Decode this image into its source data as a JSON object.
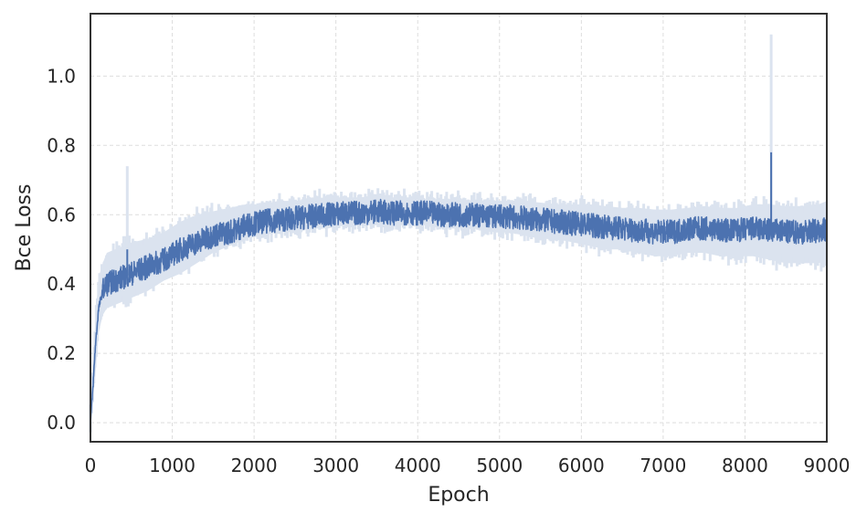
{
  "chart_data": {
    "type": "line",
    "title": "",
    "xlabel": "Epoch",
    "ylabel": "Bce Loss",
    "xlim": [
      0,
      9000
    ],
    "ylim": [
      -0.055,
      1.18
    ],
    "xticks": [
      0,
      1000,
      2000,
      3000,
      4000,
      5000,
      6000,
      7000,
      8000,
      9000
    ],
    "xtick_labels": [
      "0",
      "1000",
      "2000",
      "3000",
      "4000",
      "5000",
      "6000",
      "7000",
      "8000",
      "9000"
    ],
    "yticks": [
      0.0,
      0.2,
      0.4,
      0.6,
      0.8,
      1.0
    ],
    "ytick_labels": [
      "0.0",
      "0.2",
      "0.4",
      "0.6",
      "0.8",
      "1.0"
    ],
    "grid": true,
    "legend": "none",
    "series": [
      {
        "color": "#4c72b0",
        "band_color": "#dbe3ef",
        "x": [
          0,
          30,
          60,
          100,
          150,
          200,
          300,
          400,
          500,
          700,
          900,
          1100,
          1300,
          1500,
          1700,
          1900,
          2100,
          2300,
          2500,
          2700,
          2900,
          3100,
          3300,
          3500,
          3700,
          3900,
          4100,
          4300,
          4500,
          4700,
          4900,
          5100,
          5300,
          5500,
          5700,
          5900,
          6100,
          6300,
          6500,
          6700,
          6900,
          7100,
          7300,
          7500,
          7700,
          7900,
          8100,
          8300,
          8500,
          8700,
          8900,
          9000
        ],
        "mean": [
          0.0,
          0.1,
          0.22,
          0.33,
          0.38,
          0.4,
          0.41,
          0.42,
          0.43,
          0.45,
          0.47,
          0.5,
          0.52,
          0.54,
          0.55,
          0.57,
          0.58,
          0.585,
          0.59,
          0.595,
          0.6,
          0.605,
          0.605,
          0.61,
          0.605,
          0.605,
          0.605,
          0.6,
          0.6,
          0.6,
          0.595,
          0.595,
          0.59,
          0.585,
          0.58,
          0.575,
          0.57,
          0.565,
          0.56,
          0.555,
          0.55,
          0.55,
          0.56,
          0.56,
          0.555,
          0.555,
          0.56,
          0.555,
          0.55,
          0.55,
          0.555,
          0.56
        ],
        "lower": [
          0.0,
          0.06,
          0.14,
          0.26,
          0.31,
          0.33,
          0.34,
          0.35,
          0.36,
          0.38,
          0.41,
          0.43,
          0.46,
          0.49,
          0.51,
          0.53,
          0.54,
          0.55,
          0.55,
          0.56,
          0.56,
          0.57,
          0.57,
          0.57,
          0.57,
          0.57,
          0.57,
          0.56,
          0.56,
          0.56,
          0.55,
          0.55,
          0.54,
          0.53,
          0.53,
          0.52,
          0.51,
          0.5,
          0.5,
          0.49,
          0.48,
          0.48,
          0.49,
          0.49,
          0.48,
          0.48,
          0.48,
          0.47,
          0.46,
          0.46,
          0.46,
          0.47
        ],
        "upper": [
          0.05,
          0.15,
          0.3,
          0.42,
          0.46,
          0.49,
          0.5,
          0.51,
          0.52,
          0.53,
          0.55,
          0.58,
          0.6,
          0.61,
          0.62,
          0.63,
          0.63,
          0.64,
          0.64,
          0.645,
          0.65,
          0.65,
          0.65,
          0.655,
          0.65,
          0.65,
          0.645,
          0.645,
          0.645,
          0.64,
          0.64,
          0.64,
          0.64,
          0.635,
          0.63,
          0.63,
          0.63,
          0.625,
          0.62,
          0.62,
          0.615,
          0.615,
          0.62,
          0.625,
          0.62,
          0.62,
          0.63,
          0.63,
          0.625,
          0.625,
          0.63,
          0.64
        ],
        "spikes": [
          {
            "x": 450,
            "mean": 0.5,
            "upper": 0.74
          },
          {
            "x": 8320,
            "mean": 0.78,
            "upper": 1.12
          }
        ]
      }
    ]
  }
}
